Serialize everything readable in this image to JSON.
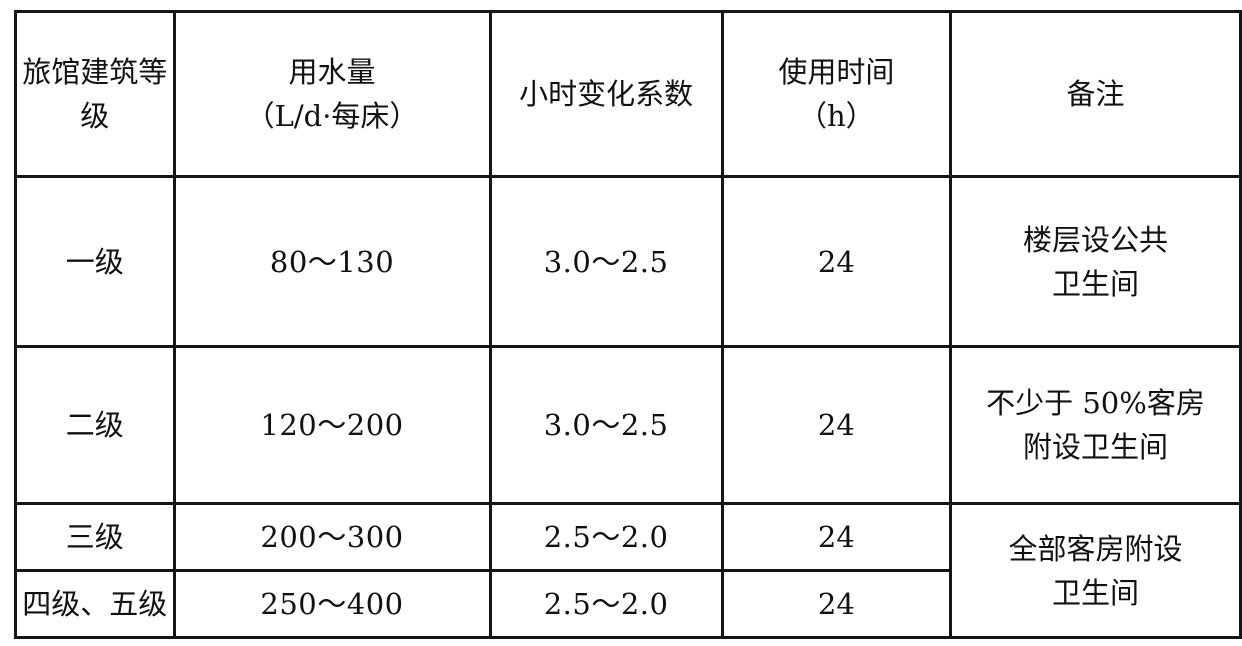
{
  "table": {
    "headers": [
      {
        "lines": [
          "旅馆建筑等级"
        ]
      },
      {
        "lines": [
          "用水量",
          "（L/d·每床）"
        ]
      },
      {
        "lines": [
          "小时变化系数"
        ]
      },
      {
        "lines": [
          "使用时间",
          "（h）"
        ]
      },
      {
        "lines": [
          "备注"
        ]
      }
    ],
    "rows": [
      {
        "grade": "一级",
        "water": "80～130",
        "coefficient": "3.0～2.5",
        "hours": "24",
        "note": [
          "楼层设公共",
          "卫生间"
        ]
      },
      {
        "grade": "二级",
        "water": "120～200",
        "coefficient": "3.0～2.5",
        "hours": "24",
        "note": [
          "不少于 50%客房",
          "附设卫生间"
        ]
      },
      {
        "grade": "三级",
        "water": "200～300",
        "coefficient": "2.5～2.0",
        "hours": "24"
      },
      {
        "grade": "四级、五级",
        "water": "250～400",
        "coefficient": "2.5～2.0",
        "hours": "24"
      }
    ],
    "merged_note": [
      "全部客房附设",
      "卫生间"
    ]
  }
}
